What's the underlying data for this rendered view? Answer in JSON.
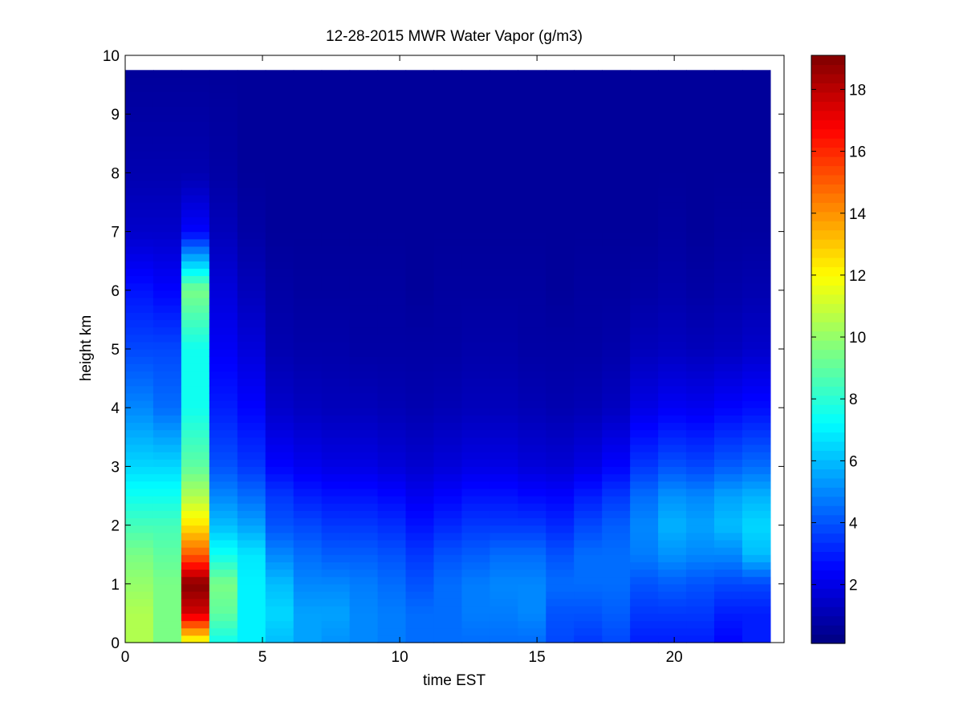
{
  "chart_data": {
    "type": "heatmap",
    "title": "12-28-2015 MWR Water Vapor (g/m3)",
    "xlabel": "time EST",
    "ylabel": "height km",
    "xlim": [
      0,
      24
    ],
    "ylim": [
      0,
      10
    ],
    "x_ticks": [
      "0",
      "5",
      "10",
      "15",
      "20"
    ],
    "y_ticks": [
      "0",
      "1",
      "2",
      "3",
      "4",
      "5",
      "6",
      "7",
      "8",
      "9",
      "10"
    ],
    "colorbar": {
      "colormap": "jet",
      "range": [
        0.1,
        19.1
      ],
      "ticks": [
        "2",
        "4",
        "6",
        "8",
        "10",
        "12",
        "14",
        "16",
        "18"
      ]
    },
    "data_extent": {
      "time": [
        0,
        23.5
      ],
      "height": [
        0,
        9.75
      ]
    },
    "time_centers": [
      0.5,
      1.5,
      2.5,
      3.5,
      4.5,
      5.5,
      6.5,
      7.5,
      8.5,
      9.5,
      10.5,
      11.5,
      12.5,
      13.5,
      14.5,
      15.5,
      16.5,
      17.5,
      18.5,
      19.5,
      20.5,
      21.5,
      22.5
    ],
    "profile_heights": [
      0,
      0.5,
      1,
      1.5,
      2,
      2.5,
      3,
      4,
      5,
      6,
      7,
      8,
      9.75
    ],
    "profiles": [
      [
        10.5,
        10.5,
        10.0,
        9.5,
        8.5,
        7.5,
        6.5,
        5.0,
        3.8,
        2.8,
        1.5,
        1.0,
        0.6
      ],
      [
        9.5,
        9.5,
        9.5,
        9.0,
        8.5,
        7.5,
        6.5,
        4.5,
        3.8,
        2.5,
        1.5,
        1.0,
        0.6
      ],
      [
        11.5,
        17.5,
        19.0,
        15.0,
        12.5,
        10.5,
        9.0,
        7.5,
        7.5,
        9.5,
        2.5,
        1.0,
        0.6
      ],
      [
        7.5,
        9.0,
        9.5,
        7.5,
        6.0,
        5.0,
        4.0,
        3.0,
        2.3,
        1.8,
        1.2,
        0.8,
        0.6
      ],
      [
        7.0,
        7.0,
        7.0,
        6.8,
        5.5,
        4.5,
        3.5,
        2.5,
        1.8,
        1.2,
        0.8,
        0.6,
        0.6
      ],
      [
        6.0,
        6.5,
        6.0,
        5.0,
        4.0,
        3.5,
        2.5,
        1.5,
        1.0,
        0.8,
        0.6,
        0.6,
        0.6
      ],
      [
        5.5,
        5.5,
        5.0,
        4.5,
        3.8,
        3.0,
        2.2,
        1.3,
        0.9,
        0.7,
        0.6,
        0.6,
        0.6
      ],
      [
        5.2,
        5.5,
        5.0,
        4.2,
        3.5,
        2.8,
        2.0,
        1.2,
        0.9,
        0.7,
        0.6,
        0.6,
        0.6
      ],
      [
        5.0,
        5.0,
        4.8,
        4.2,
        3.5,
        2.8,
        2.0,
        1.2,
        0.8,
        0.7,
        0.6,
        0.6,
        0.6
      ],
      [
        4.8,
        4.8,
        4.5,
        4.0,
        3.3,
        2.6,
        1.8,
        1.1,
        0.8,
        0.7,
        0.6,
        0.6,
        0.6
      ],
      [
        4.5,
        4.5,
        4.0,
        3.5,
        2.8,
        2.2,
        1.6,
        1.0,
        0.8,
        0.6,
        0.6,
        0.6,
        0.6
      ],
      [
        4.5,
        4.5,
        4.5,
        4.0,
        3.2,
        2.5,
        1.8,
        1.1,
        0.8,
        0.7,
        0.6,
        0.6,
        0.6
      ],
      [
        4.5,
        4.8,
        4.8,
        4.2,
        3.5,
        2.8,
        2.0,
        1.2,
        0.9,
        0.7,
        0.6,
        0.6,
        0.6
      ],
      [
        4.5,
        4.8,
        5.0,
        4.5,
        3.5,
        2.8,
        2.0,
        1.2,
        0.9,
        0.7,
        0.6,
        0.6,
        0.6
      ],
      [
        4.5,
        5.0,
        5.0,
        4.5,
        3.5,
        2.6,
        1.8,
        1.1,
        0.8,
        0.7,
        0.6,
        0.6,
        0.6
      ],
      [
        3.8,
        4.0,
        4.5,
        4.0,
        3.2,
        2.5,
        1.7,
        1.0,
        0.8,
        0.6,
        0.6,
        0.6,
        0.6
      ],
      [
        3.5,
        4.0,
        4.5,
        4.5,
        3.8,
        3.0,
        2.0,
        1.1,
        0.8,
        0.7,
        0.6,
        0.6,
        0.6
      ],
      [
        3.8,
        4.2,
        4.5,
        4.5,
        4.2,
        3.5,
        2.5,
        1.3,
        0.9,
        0.7,
        0.6,
        0.6,
        0.6
      ],
      [
        3.0,
        3.5,
        4.0,
        4.8,
        5.0,
        4.5,
        3.5,
        2.0,
        1.2,
        0.8,
        0.6,
        0.6,
        0.6
      ],
      [
        3.0,
        3.5,
        4.2,
        5.2,
        5.8,
        5.2,
        4.0,
        2.3,
        1.3,
        0.9,
        0.7,
        0.6,
        0.6
      ],
      [
        3.0,
        3.5,
        4.0,
        5.0,
        5.5,
        5.0,
        3.8,
        2.2,
        1.2,
        0.8,
        0.6,
        0.6,
        0.6
      ],
      [
        2.5,
        3.0,
        3.8,
        5.0,
        6.0,
        5.5,
        4.2,
        2.5,
        1.3,
        0.9,
        0.7,
        0.6,
        0.6
      ],
      [
        3.0,
        3.0,
        3.8,
        6.0,
        6.5,
        5.8,
        4.5,
        2.7,
        1.5,
        1.0,
        0.7,
        0.6,
        0.6
      ]
    ]
  }
}
